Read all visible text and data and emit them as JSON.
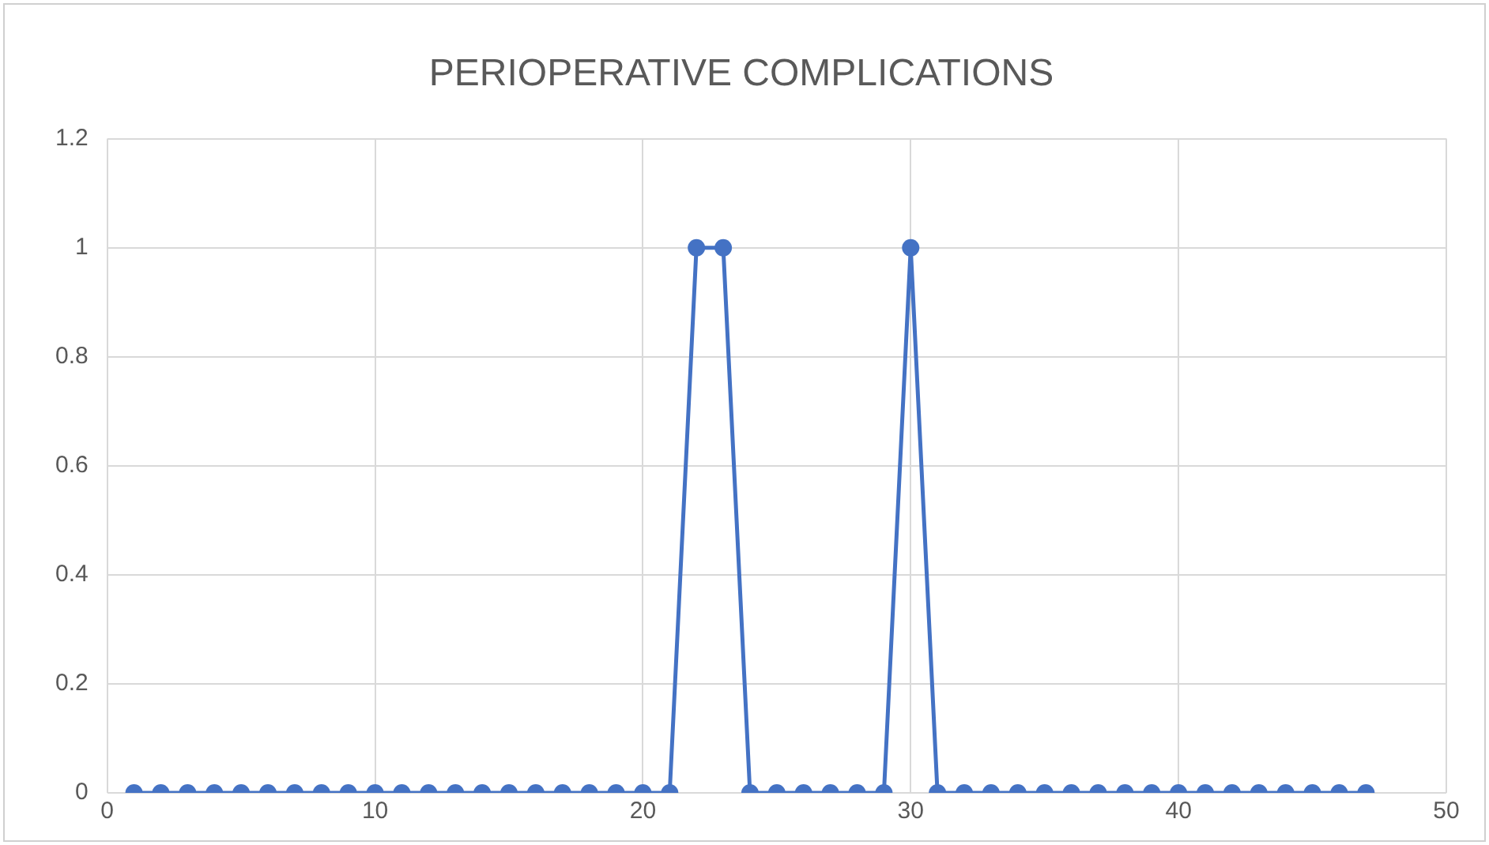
{
  "chart_data": {
    "type": "line",
    "title": "PERIOPERATIVE COMPLICATIONS",
    "x": [
      1,
      2,
      3,
      4,
      5,
      6,
      7,
      8,
      9,
      10,
      11,
      12,
      13,
      14,
      15,
      16,
      17,
      18,
      19,
      20,
      21,
      22,
      23,
      24,
      25,
      26,
      27,
      28,
      29,
      30,
      31,
      32,
      33,
      34,
      35,
      36,
      37,
      38,
      39,
      40,
      41,
      42,
      43,
      44,
      45,
      46,
      47
    ],
    "values": [
      0,
      0,
      0,
      0,
      0,
      0,
      0,
      0,
      0,
      0,
      0,
      0,
      0,
      0,
      0,
      0,
      0,
      0,
      0,
      0,
      0,
      1,
      1,
      0,
      0,
      0,
      0,
      0,
      0,
      1,
      0,
      0,
      0,
      0,
      0,
      0,
      0,
      0,
      0,
      0,
      0,
      0,
      0,
      0,
      0,
      0,
      0
    ],
    "color": "#4472c4",
    "xlim": [
      0,
      50
    ],
    "xticks": [
      0,
      10,
      20,
      30,
      40,
      50
    ],
    "ylim": [
      0,
      1.2
    ],
    "yticks": [
      0,
      0.2,
      0.4,
      0.6,
      0.8,
      1,
      1.2
    ],
    "grid": true,
    "marker": "circle",
    "line_style": "solid"
  }
}
